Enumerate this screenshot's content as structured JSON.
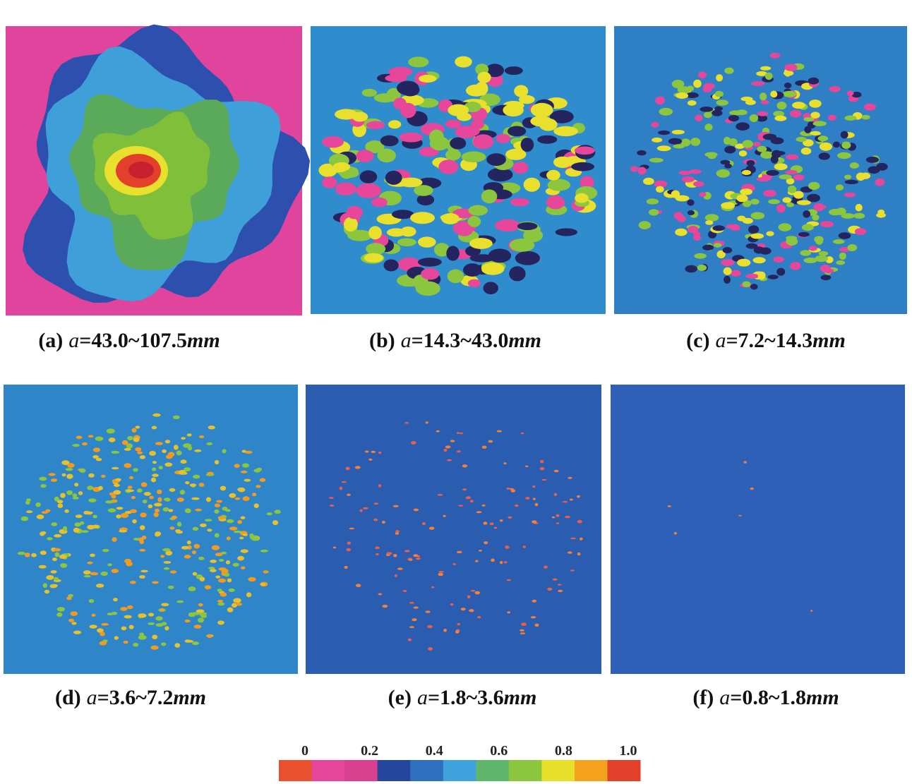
{
  "panels": [
    {
      "letter": "(a)",
      "variable": "a",
      "range": "=43.0~107.5",
      "unit": "mm"
    },
    {
      "letter": "(b)",
      "variable": "a",
      "range": "=14.3~43.0",
      "unit": "mm"
    },
    {
      "letter": "(c)",
      "variable": "a",
      "range": "=7.2~14.3",
      "unit": "mm"
    },
    {
      "letter": "(d)",
      "variable": "a",
      "range": "=3.6~7.2",
      "unit": "mm"
    },
    {
      "letter": "(e)",
      "variable": "a",
      "range": "=1.8~3.6",
      "unit": "mm"
    },
    {
      "letter": "(f)",
      "variable": "a",
      "range": "=0.8~1.8",
      "unit": "mm"
    }
  ],
  "colorbar": {
    "ticks": [
      0,
      0.2,
      0.4,
      0.6,
      0.8,
      {
        "value": 1,
        "label": "1.0"
      }
    ],
    "colors": [
      "#e8502e",
      "#e6479a",
      "#d9408f",
      "#26479e",
      "#2f6fc0",
      "#3fa2dc",
      "#5fb56a",
      "#8cc63f",
      "#e6e02a",
      "#f4a21e",
      "#e3402c"
    ]
  }
}
